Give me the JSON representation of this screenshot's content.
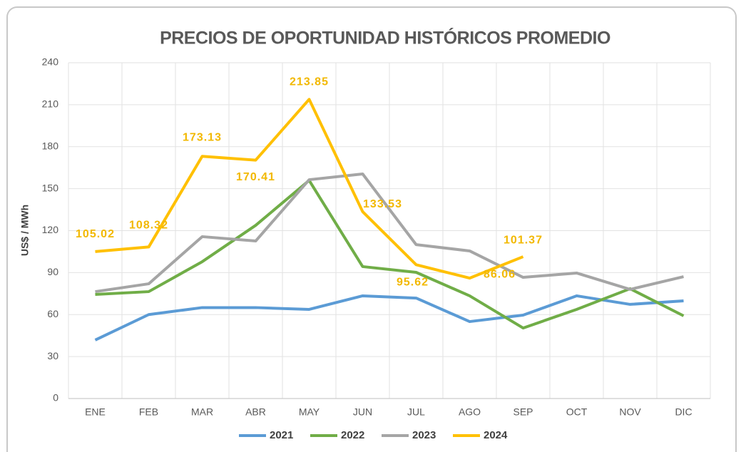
{
  "chart_data": {
    "type": "line",
    "title": "PRECIOS DE OPORTUNIDAD HISTÓRICOS PROMEDIO",
    "y_label": "US$ / MWh",
    "categories": [
      "ENE",
      "FEB",
      "MAR",
      "ABR",
      "MAY",
      "JUN",
      "JUL",
      "AGO",
      "SEP",
      "OCT",
      "NOV",
      "DIC"
    ],
    "series": [
      {
        "name": "2021",
        "color": "#5b9bd5",
        "values": [
          41.8,
          60,
          65,
          65,
          63.7,
          73.4,
          71.8,
          55,
          59.6,
          73.4,
          67.3,
          69.8
        ]
      },
      {
        "name": "2022",
        "color": "#70ad47",
        "values": [
          74.4,
          76.4,
          97.8,
          123.8,
          155.9,
          94.3,
          90.2,
          73.4,
          50.4,
          63.7,
          78.5,
          59.1
        ]
      },
      {
        "name": "2023",
        "color": "#a5a5a5",
        "values": [
          76.4,
          82,
          115.7,
          112.6,
          156.4,
          160.5,
          110,
          105.5,
          86.6,
          89.7,
          78,
          87.1
        ]
      },
      {
        "name": "2024",
        "color": "#ffc000",
        "data_labels": true,
        "values": [
          105.02,
          108.32,
          173.13,
          170.41,
          213.85,
          133.53,
          95.62,
          86.06,
          101.37,
          null,
          null,
          null
        ]
      }
    ],
    "ylim": [
      0,
      240
    ],
    "yticks": [
      0,
      30,
      60,
      90,
      120,
      150,
      180,
      210,
      240
    ],
    "grid": true,
    "legend": "bottom"
  }
}
